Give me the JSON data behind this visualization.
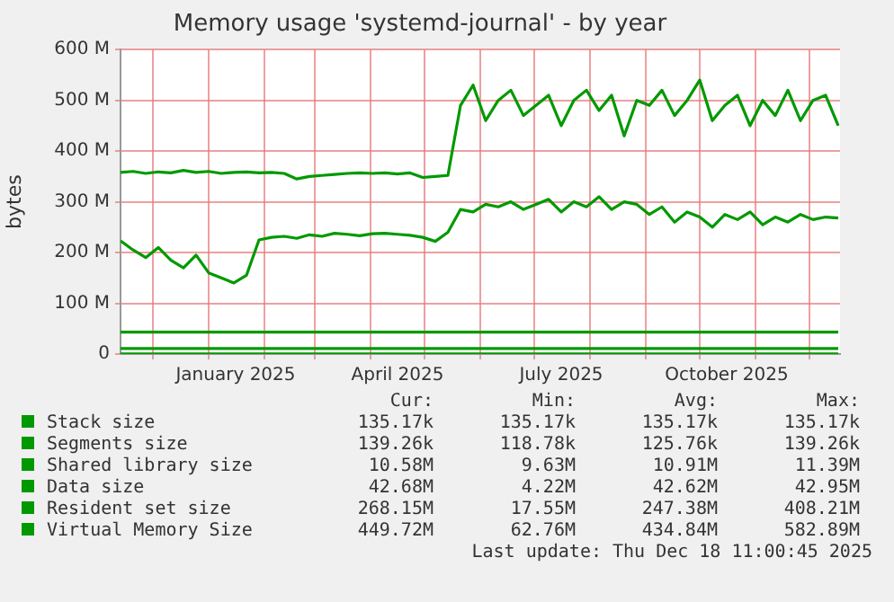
{
  "chart_data": {
    "type": "line",
    "title": "Memory usage 'systemd-journal' - by year",
    "ylabel": "bytes",
    "x": [
      "2024-11-13",
      "2024-11-20",
      "2024-11-27",
      "2024-12-04",
      "2024-12-11",
      "2024-12-18",
      "2024-12-25",
      "2025-01-01",
      "2025-01-08",
      "2025-01-15",
      "2025-01-22",
      "2025-01-29",
      "2025-02-05",
      "2025-02-12",
      "2025-02-19",
      "2025-02-26",
      "2025-03-05",
      "2025-03-12",
      "2025-03-19",
      "2025-03-26",
      "2025-04-02",
      "2025-04-09",
      "2025-04-16",
      "2025-04-23",
      "2025-04-30",
      "2025-05-07",
      "2025-05-14",
      "2025-05-21",
      "2025-05-28",
      "2025-06-04",
      "2025-06-11",
      "2025-06-18",
      "2025-06-25",
      "2025-07-02",
      "2025-07-09",
      "2025-07-16",
      "2025-07-23",
      "2025-07-30",
      "2025-08-06",
      "2025-08-13",
      "2025-08-20",
      "2025-08-27",
      "2025-09-03",
      "2025-09-10",
      "2025-09-17",
      "2025-09-24",
      "2025-10-01",
      "2025-10-08",
      "2025-10-15",
      "2025-10-22",
      "2025-10-29",
      "2025-11-05",
      "2025-11-12",
      "2025-11-19",
      "2025-11-26",
      "2025-12-03",
      "2025-12-10",
      "2025-12-17"
    ],
    "series": [
      {
        "name": "Stack size",
        "color": "#009900",
        "x": [
          "2024-11-13",
          "2025-12-17"
        ],
        "values": [
          0,
          0
        ]
      },
      {
        "name": "Segments size",
        "color": "#009900",
        "x": [
          "2024-11-13",
          "2025-12-17"
        ],
        "values": [
          0,
          0
        ]
      },
      {
        "name": "Shared library size",
        "color": "#009900",
        "x": [
          "2024-11-13",
          "2025-12-17"
        ],
        "values": [
          11000000,
          11000000
        ]
      },
      {
        "name": "Data size",
        "color": "#009900",
        "x": [
          "2024-11-13",
          "2025-12-17"
        ],
        "values": [
          43000000,
          43000000
        ]
      },
      {
        "name": "Resident set size",
        "color": "#009900",
        "values": [
          223000000,
          205000000,
          190000000,
          210000000,
          185000000,
          170000000,
          195000000,
          160000000,
          150000000,
          140000000,
          155000000,
          225000000,
          230000000,
          232000000,
          228000000,
          235000000,
          232000000,
          238000000,
          236000000,
          233000000,
          237000000,
          238000000,
          236000000,
          234000000,
          230000000,
          222000000,
          240000000,
          285000000,
          280000000,
          295000000,
          290000000,
          300000000,
          285000000,
          295000000,
          305000000,
          280000000,
          300000000,
          290000000,
          310000000,
          285000000,
          300000000,
          295000000,
          275000000,
          290000000,
          260000000,
          280000000,
          270000000,
          250000000,
          275000000,
          265000000,
          280000000,
          255000000,
          270000000,
          260000000,
          275000000,
          265000000,
          270000000,
          268000000
        ]
      },
      {
        "name": "Virtual Memory Size",
        "color": "#009900",
        "values": [
          358000000,
          360000000,
          356000000,
          359000000,
          357000000,
          362000000,
          358000000,
          360000000,
          356000000,
          358000000,
          359000000,
          357000000,
          358000000,
          356000000,
          345000000,
          350000000,
          352000000,
          354000000,
          356000000,
          357000000,
          356000000,
          357000000,
          355000000,
          357000000,
          348000000,
          350000000,
          352000000,
          490000000,
          530000000,
          460000000,
          500000000,
          520000000,
          470000000,
          490000000,
          510000000,
          450000000,
          500000000,
          520000000,
          480000000,
          510000000,
          430000000,
          500000000,
          490000000,
          520000000,
          470000000,
          500000000,
          540000000,
          460000000,
          490000000,
          510000000,
          450000000,
          500000000,
          470000000,
          520000000,
          460000000,
          500000000,
          510000000,
          450000000
        ]
      }
    ],
    "xlim": [
      "2024-11-13",
      "2025-12-18"
    ],
    "xticks": [
      {
        "value": "2024-12-01",
        "label": null
      },
      {
        "value": "2025-01-01",
        "label": null
      },
      {
        "value": "2025-01-16",
        "label": "January 2025"
      },
      {
        "value": "2025-02-01",
        "label": null
      },
      {
        "value": "2025-03-01",
        "label": null
      },
      {
        "value": "2025-04-01",
        "label": null
      },
      {
        "value": "2025-04-16",
        "label": "April 2025"
      },
      {
        "value": "2025-05-01",
        "label": null
      },
      {
        "value": "2025-06-01",
        "label": null
      },
      {
        "value": "2025-07-01",
        "label": null
      },
      {
        "value": "2025-07-16",
        "label": "July 2025"
      },
      {
        "value": "2025-08-01",
        "label": null
      },
      {
        "value": "2025-09-01",
        "label": null
      },
      {
        "value": "2025-10-01",
        "label": null
      },
      {
        "value": "2025-10-16",
        "label": "October 2025"
      },
      {
        "value": "2025-11-01",
        "label": null
      },
      {
        "value": "2025-12-01",
        "label": null
      }
    ],
    "ylim": [
      0,
      600000000
    ],
    "yticks": [
      0,
      {
        "value": 100000000,
        "label": "100 M"
      },
      {
        "value": 200000000,
        "label": "200 M"
      },
      {
        "value": 300000000,
        "label": "300 M"
      },
      {
        "value": 400000000,
        "label": "400 M"
      },
      {
        "value": 500000000,
        "label": "500 M"
      },
      {
        "value": 600000000,
        "label": "600 M"
      }
    ],
    "grid": true,
    "legend": "bottom",
    "marker": "none",
    "line_style": "solid",
    "annotations": [
      "Cur:",
      "Min:",
      "Avg:",
      "Max:",
      "135.17k",
      "135.17k",
      "135.17k",
      "135.17k",
      "139.26k",
      "118.78k",
      "125.76k",
      "139.26k",
      "10.58M",
      "9.63M",
      "10.91M",
      "11.39M",
      "42.68M",
      "4.22M",
      "42.62M",
      "42.95M",
      "268.15M",
      "17.55M",
      "247.38M",
      "408.21M",
      "449.72M",
      "62.76M",
      "434.84M",
      "582.89M",
      "Last update: Thu Dec 18 11:00:45 2025"
    ]
  }
}
